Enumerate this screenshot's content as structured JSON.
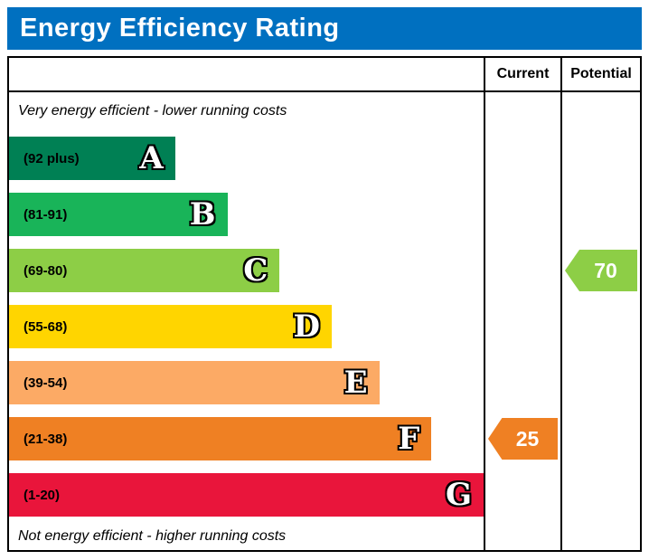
{
  "chart_data": {
    "type": "bar",
    "title": "Energy Efficiency Rating",
    "columns": {
      "current": "Current",
      "potential": "Potential"
    },
    "captions": {
      "top": "Very energy efficient - lower running costs",
      "bottom": "Not energy efficient - higher running costs"
    },
    "bands": [
      {
        "letter": "A",
        "range_label": "(92 plus)",
        "min": 92,
        "max": 100,
        "color": "#008054",
        "width_pct": 35
      },
      {
        "letter": "B",
        "range_label": "(81-91)",
        "min": 81,
        "max": 91,
        "color": "#19b459",
        "width_pct": 46
      },
      {
        "letter": "C",
        "range_label": "(69-80)",
        "min": 69,
        "max": 80,
        "color": "#8dce46",
        "width_pct": 57
      },
      {
        "letter": "D",
        "range_label": "(55-68)",
        "min": 55,
        "max": 68,
        "color": "#ffd500",
        "width_pct": 68
      },
      {
        "letter": "E",
        "range_label": "(39-54)",
        "min": 39,
        "max": 54,
        "color": "#fcaa65",
        "width_pct": 78
      },
      {
        "letter": "F",
        "range_label": "(21-38)",
        "min": 21,
        "max": 38,
        "color": "#ef8023",
        "width_pct": 89
      },
      {
        "letter": "G",
        "range_label": "(1-20)",
        "min": 1,
        "max": 20,
        "color": "#e9153b",
        "width_pct": 100
      }
    ],
    "current": {
      "value": 25,
      "band": "F",
      "band_index": 5,
      "color": "#ef8023"
    },
    "potential": {
      "value": 70,
      "band": "C",
      "band_index": 2,
      "color": "#8dce46"
    }
  }
}
